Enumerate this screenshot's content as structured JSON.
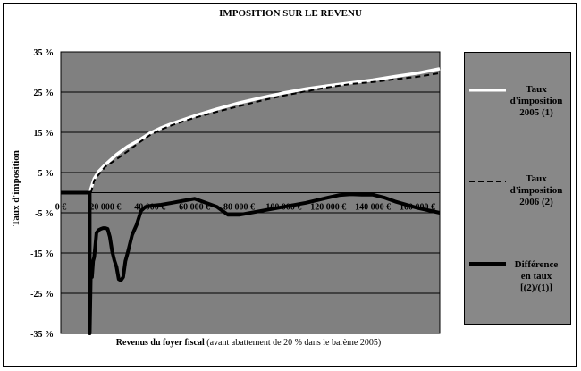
{
  "chart_data": {
    "type": "line",
    "title": "IMPOSITION SUR LE REVENU",
    "ylabel": "Taux d'imposition",
    "xlabel_main": "Revenus du foyer fiscal",
    "xlabel_note": "(avant abattement de 20 % dans le barème 2005)",
    "ylim": [
      -35,
      35
    ],
    "xlim": [
      0,
      170000
    ],
    "y_ticks": [
      35,
      25,
      15,
      5,
      -5,
      -15,
      -25,
      -35
    ],
    "y_tick_labels": [
      "35 %",
      "25 %",
      "15 %",
      "5 %",
      "-5 %",
      "-15 %",
      "-25 %",
      "-35 %"
    ],
    "x_ticks": [
      0,
      20000,
      40000,
      60000,
      80000,
      100000,
      120000,
      140000,
      160000
    ],
    "x_tick_labels": [
      "0 €",
      "20 000 €",
      "40 000 €",
      "60 000 €",
      "80 000 €",
      "100 000 €",
      "120 000 €",
      "140 000 €",
      "160 000 €"
    ],
    "grid": true,
    "legend_position": "right",
    "series": [
      {
        "name": "Taux d'imposition 2005 (1)",
        "color": "#ffffff",
        "dash": "solid",
        "x": [
          0,
          13000,
          13500,
          15000,
          17000,
          20000,
          25000,
          30000,
          35000,
          40000,
          45000,
          50000,
          60000,
          70000,
          80000,
          90000,
          100000,
          110000,
          120000,
          130000,
          140000,
          150000,
          160000,
          170000
        ],
        "y": [
          0,
          0,
          1,
          3.5,
          5.3,
          7,
          9.5,
          11.5,
          13,
          14.8,
          16.1,
          17.2,
          19.1,
          20.8,
          22.3,
          23.6,
          24.8,
          25.8,
          26.6,
          27.3,
          28.0,
          28.9,
          29.7,
          30.8
        ]
      },
      {
        "name": "Taux d'imposition 2006 (2)",
        "color": "#000000",
        "dash": "dashed",
        "x": [
          13500,
          15000,
          17000,
          20000,
          25000,
          30000,
          35000,
          40000,
          45000,
          50000,
          60000,
          70000,
          80000,
          90000,
          100000,
          110000,
          120000,
          130000,
          140000,
          150000,
          160000,
          170000
        ],
        "y": [
          0,
          3,
          4.5,
          6.5,
          8.3,
          10.3,
          12.4,
          14.3,
          15.7,
          16.8,
          18.6,
          20.1,
          21.5,
          22.9,
          24.1,
          25.2,
          26.2,
          27.0,
          27.5,
          28.2,
          28.8,
          29.7
        ]
      },
      {
        "name": "Différence en taux [(2)/(1)]",
        "color": "#000000",
        "dash": "solid",
        "x": [
          0,
          13000,
          13000,
          13500,
          14000,
          14500,
          15000,
          15500,
          16000,
          17000,
          18000,
          19000,
          20000,
          21000,
          22000,
          23000,
          24000,
          25000,
          26000,
          27000,
          28000,
          29000,
          30000,
          32000,
          34000,
          36000,
          38000,
          40000,
          45000,
          50000,
          55000,
          60000,
          65000,
          70000,
          75000,
          80000,
          90000,
          100000,
          110000,
          120000,
          125000,
          130000,
          135000,
          140000,
          145000,
          150000,
          160000,
          170000
        ],
        "y": [
          0,
          0,
          -35,
          -19,
          -21,
          -17,
          -16,
          -13,
          -10,
          -9.3,
          -9.0,
          -8.8,
          -8.8,
          -9.0,
          -11,
          -14.5,
          -16.8,
          -18.5,
          -21.5,
          -21.8,
          -21,
          -17,
          -15,
          -10.5,
          -8,
          -4.5,
          -3.5,
          -3.3,
          -3.0,
          -2.5,
          -2.0,
          -1.5,
          -2.5,
          -3.5,
          -5.5,
          -5.5,
          -4.5,
          -3.5,
          -2.5,
          -1.2,
          -0.6,
          -0.4,
          -0.5,
          -0.5,
          -1.2,
          -2.2,
          -3.8,
          -5.0
        ]
      }
    ]
  },
  "legend": [
    {
      "label": "Taux d'imposition 2005 (1)"
    },
    {
      "label": "Taux d'imposition 2006 (2)"
    },
    {
      "label": "Différence en taux [(2)/(1)]"
    }
  ]
}
